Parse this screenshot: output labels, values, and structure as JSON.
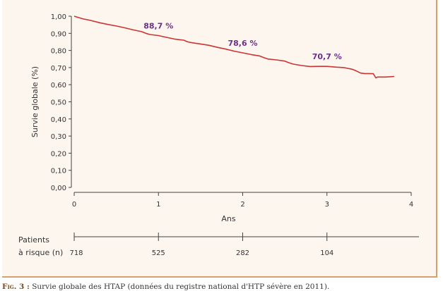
{
  "chart_data": {
    "type": "line",
    "title": "",
    "xlabel": "Ans",
    "ylabel": "Survie globale (%)",
    "xlim": [
      0,
      4
    ],
    "ylim": [
      0,
      1
    ],
    "x_ticks": [
      "0",
      "1",
      "2",
      "3",
      "4"
    ],
    "y_ticks": [
      "0,00",
      "0,10",
      "0,20",
      "0,30",
      "0,40",
      "0,50",
      "0,60",
      "0,70",
      "0,80",
      "0,90",
      "1,00"
    ],
    "series": [
      {
        "color": "#cc3333",
        "x": [
          0,
          0.1,
          0.2,
          0.3,
          0.4,
          0.5,
          0.6,
          0.7,
          0.8,
          0.85,
          0.9,
          1.0,
          1.1,
          1.2,
          1.3,
          1.35,
          1.4,
          1.5,
          1.6,
          1.7,
          1.8,
          1.9,
          2.0,
          2.1,
          2.2,
          2.25,
          2.3,
          2.4,
          2.5,
          2.55,
          2.6,
          2.7,
          2.8,
          2.9,
          3.0,
          3.1,
          3.2,
          3.25,
          3.3,
          3.35,
          3.4,
          3.45,
          3.5,
          3.55,
          3.58,
          3.6,
          3.7,
          3.8
        ],
        "values": [
          1.0,
          0.985,
          0.975,
          0.962,
          0.952,
          0.943,
          0.932,
          0.92,
          0.91,
          0.9,
          0.893,
          0.887,
          0.876,
          0.866,
          0.86,
          0.85,
          0.845,
          0.838,
          0.83,
          0.818,
          0.808,
          0.796,
          0.786,
          0.776,
          0.768,
          0.758,
          0.75,
          0.745,
          0.738,
          0.728,
          0.72,
          0.712,
          0.706,
          0.707,
          0.707,
          0.703,
          0.7,
          0.695,
          0.69,
          0.68,
          0.668,
          0.665,
          0.665,
          0.664,
          0.64,
          0.645,
          0.645,
          0.648
        ]
      }
    ],
    "annotations": [
      {
        "x": 1,
        "y": 0.887,
        "text": "88,7 %"
      },
      {
        "x": 2,
        "y": 0.786,
        "text": "78,6 %"
      },
      {
        "x": 3,
        "y": 0.707,
        "text": "70,7 %"
      }
    ],
    "risk_table": {
      "title_line1": "Patients",
      "title_line2": "à risque (n)",
      "x": [
        0,
        1,
        2,
        3
      ],
      "values": [
        "718",
        "525",
        "282",
        "104"
      ]
    }
  },
  "caption": {
    "label": "Fig. 3 :",
    "text": "Survie globale des HTAP (données du registre national d'HTP sévère en 2011)."
  }
}
